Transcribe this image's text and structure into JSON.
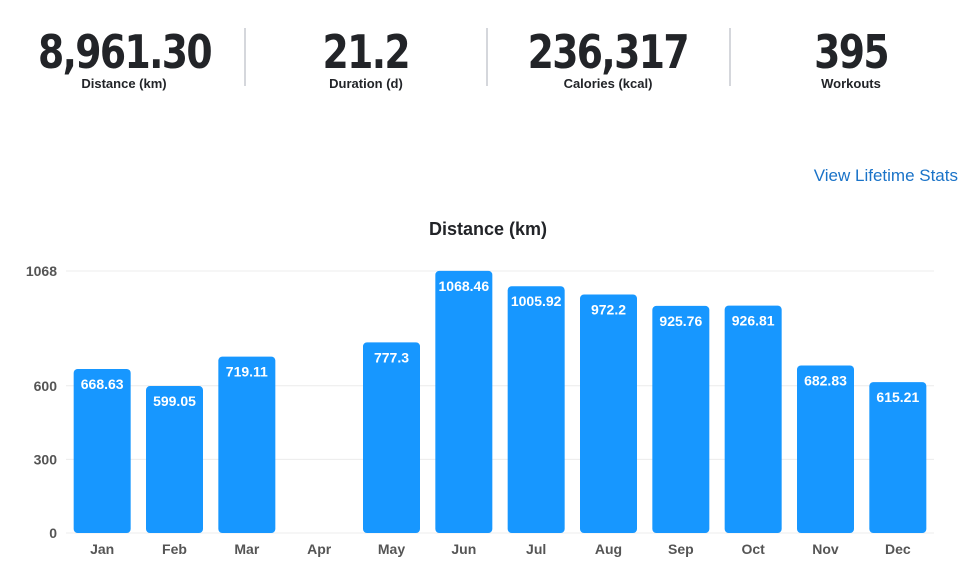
{
  "stats": [
    {
      "value": "8,961.30",
      "label": "Distance (km)"
    },
    {
      "value": "21.2",
      "label": "Duration (d)"
    },
    {
      "value": "236,317",
      "label": "Calories (kcal)"
    },
    {
      "value": "395",
      "label": "Workouts"
    }
  ],
  "link": "View Lifetime Stats",
  "colors": {
    "bar": "#1797ff",
    "text": "#222428",
    "axis": "#555"
  },
  "chart_data": {
    "type": "bar",
    "title": "Distance (km)",
    "categories": [
      "Jan",
      "Feb",
      "Mar",
      "Apr",
      "May",
      "Jun",
      "Jul",
      "Aug",
      "Sep",
      "Oct",
      "Nov",
      "Dec"
    ],
    "values": [
      668.63,
      599.05,
      719.11,
      0,
      777.3,
      1068.46,
      1005.92,
      972.2,
      925.76,
      926.81,
      682.83,
      615.21
    ],
    "labels": [
      "668.63",
      "599.05",
      "719.11",
      "",
      "777.3",
      "1068.46",
      "1005.92",
      "972.2",
      "925.76",
      "926.81",
      "682.83",
      "615.21"
    ],
    "yticks": [
      "0",
      "300",
      "600",
      "1068"
    ],
    "ylim": [
      0,
      1068
    ],
    "grid": true
  }
}
